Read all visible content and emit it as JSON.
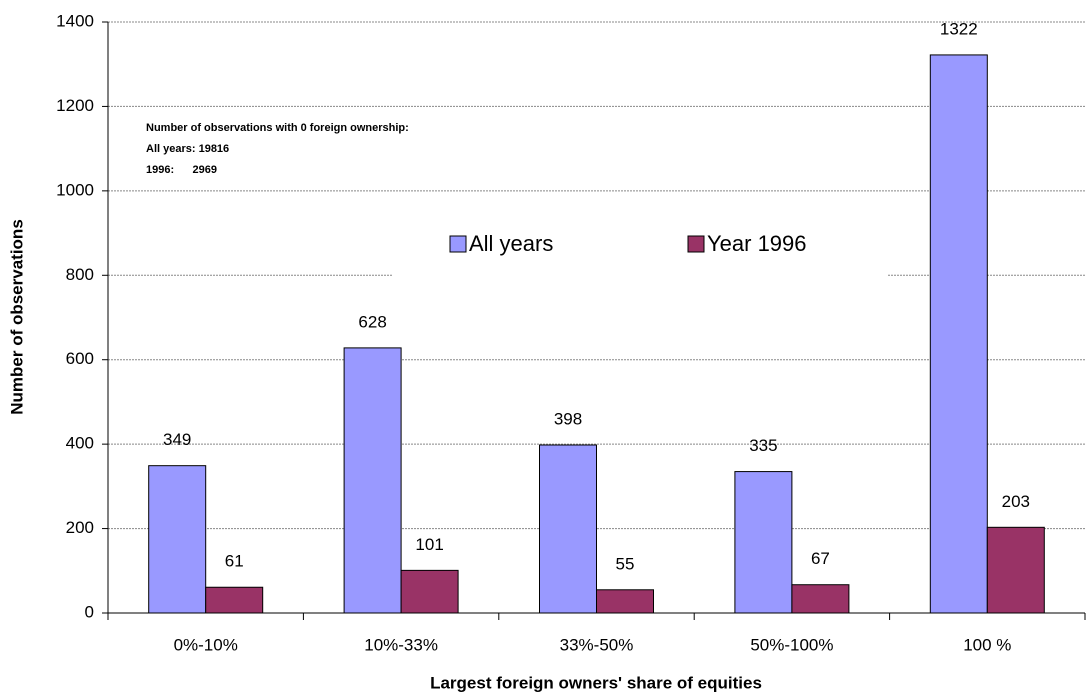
{
  "chart_data": {
    "type": "bar",
    "x_label": "Largest foreign owners' share of equities",
    "y_label": "Number of observations",
    "categories": [
      "0%-10%",
      "10%-33%",
      "33%-50%",
      "50%-100%",
      "100 %"
    ],
    "series": [
      {
        "name": "All years",
        "color": "#9999ff",
        "values": [
          349,
          628,
          398,
          335,
          1322
        ]
      },
      {
        "name": "Year 1996",
        "color": "#993366",
        "values": [
          61,
          101,
          55,
          67,
          203
        ]
      }
    ],
    "ylim": [
      0,
      1400
    ],
    "yticks": [
      0,
      200,
      400,
      600,
      800,
      1000,
      1200,
      1400
    ],
    "grid": true,
    "annotations": [
      "Number of observations with 0 foreign ownership:",
      "All years: 19816",
      "1996:      2969"
    ]
  }
}
